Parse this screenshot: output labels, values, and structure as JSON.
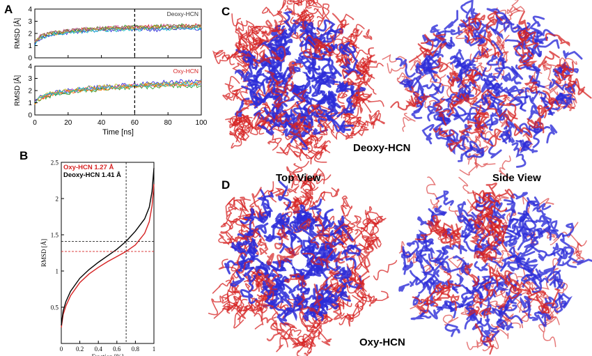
{
  "panels": {
    "a": "A",
    "b": "B",
    "c": "C",
    "d": "D"
  },
  "labels": {
    "deoxy": "Deoxy-HCN",
    "top_view": "Top View",
    "side_view": "Side View",
    "oxy": "Oxy-HCN"
  },
  "colors": {
    "deoxy": "#2d2dd8",
    "oxy": "#d62222",
    "black": "#000000"
  },
  "chart_data": [
    {
      "type": "line",
      "panel": "A-top",
      "annotation": "Deoxy-HCN",
      "xlim": [
        0,
        100
      ],
      "ylim": [
        0,
        4
      ],
      "yticks": [
        "0",
        "1",
        "2",
        "3",
        "4"
      ],
      "ylabel": "RMSD [Å]",
      "vline_x": 60,
      "x": [
        0,
        2,
        5,
        10,
        20,
        30,
        40,
        50,
        60,
        70,
        80,
        90,
        100
      ],
      "series": [
        {
          "color": "#d62222",
          "values": [
            1.2,
            1.6,
            1.8,
            2.0,
            2.2,
            2.3,
            2.4,
            2.45,
            2.5,
            2.55,
            2.6,
            2.6,
            2.65
          ]
        },
        {
          "color": "#2d2dd8",
          "values": [
            1.2,
            1.5,
            1.7,
            1.9,
            2.1,
            2.2,
            2.3,
            2.3,
            2.35,
            2.3,
            2.35,
            2.4,
            2.4
          ]
        },
        {
          "color": "#2ca02c",
          "values": [
            1.3,
            1.6,
            1.8,
            2.0,
            2.2,
            2.35,
            2.4,
            2.5,
            2.55,
            2.6,
            2.6,
            2.65,
            2.6
          ]
        },
        {
          "color": "#e377c2",
          "values": [
            1.3,
            1.7,
            1.9,
            2.1,
            2.25,
            2.35,
            2.45,
            2.5,
            2.5,
            2.55,
            2.6,
            2.55,
            2.6
          ]
        },
        {
          "color": "#bcbd22",
          "values": [
            1.2,
            1.6,
            1.8,
            2.0,
            2.15,
            2.3,
            2.35,
            2.4,
            2.45,
            2.5,
            2.5,
            2.55,
            2.55
          ]
        },
        {
          "color": "#17becf",
          "values": [
            1.1,
            1.5,
            1.7,
            1.9,
            2.05,
            2.2,
            2.25,
            2.3,
            2.35,
            2.4,
            2.4,
            2.45,
            2.45
          ]
        },
        {
          "color": "#8c564b",
          "values": [
            1.3,
            1.6,
            1.85,
            2.05,
            2.2,
            2.3,
            2.4,
            2.45,
            2.5,
            2.5,
            2.55,
            2.6,
            2.6
          ]
        }
      ]
    },
    {
      "type": "line",
      "panel": "A-bottom",
      "annotation": "Oxy-HCN",
      "xlim": [
        0,
        100
      ],
      "ylim": [
        0,
        4
      ],
      "xticks": [
        "0",
        "20",
        "40",
        "60",
        "80",
        "100"
      ],
      "yticks": [
        "0",
        "1",
        "2",
        "3",
        "4"
      ],
      "xlabel": "Time [ns]",
      "ylabel": "RMSD [Å]",
      "vline_x": 60,
      "x": [
        0,
        2,
        5,
        10,
        20,
        30,
        40,
        50,
        60,
        70,
        80,
        90,
        100
      ],
      "series": [
        {
          "color": "#d62222",
          "values": [
            1.0,
            1.3,
            1.5,
            1.7,
            1.9,
            2.1,
            2.2,
            2.3,
            2.4,
            2.45,
            2.5,
            2.55,
            2.6
          ]
        },
        {
          "color": "#2d2dd8",
          "values": [
            1.1,
            1.4,
            1.6,
            1.8,
            2.0,
            2.2,
            2.3,
            2.4,
            2.5,
            2.6,
            2.7,
            2.75,
            2.8
          ]
        },
        {
          "color": "#2ca02c",
          "values": [
            0.9,
            1.2,
            1.4,
            1.6,
            1.8,
            2.0,
            2.1,
            2.2,
            2.3,
            2.3,
            2.35,
            2.4,
            2.4
          ]
        },
        {
          "color": "#e377c2",
          "values": [
            1.0,
            1.3,
            1.5,
            1.75,
            1.95,
            2.1,
            2.25,
            2.35,
            2.4,
            2.5,
            2.5,
            2.55,
            2.6
          ]
        },
        {
          "color": "#bcbd22",
          "values": [
            1.0,
            1.35,
            1.55,
            1.8,
            2.0,
            2.15,
            2.3,
            2.4,
            2.45,
            2.5,
            2.55,
            2.6,
            2.65
          ]
        },
        {
          "color": "#ff7f0e",
          "values": [
            0.9,
            1.25,
            1.45,
            1.7,
            1.9,
            2.05,
            2.15,
            2.25,
            2.35,
            2.4,
            2.45,
            2.5,
            2.5
          ]
        },
        {
          "color": "#17becf",
          "values": [
            1.05,
            1.3,
            1.5,
            1.75,
            1.95,
            2.1,
            2.2,
            2.3,
            2.4,
            2.45,
            2.5,
            2.55,
            2.55
          ]
        }
      ]
    },
    {
      "type": "line",
      "panel": "B",
      "xlim": [
        0,
        1
      ],
      "ylim": [
        0,
        2.5
      ],
      "xticks": [
        "0",
        "0.2",
        "0.4",
        "0.6",
        "0.8",
        "1"
      ],
      "yticks": [
        "0.5",
        "1",
        "1.5",
        "2",
        "2.5"
      ],
      "xlabel": "Fraction [%]",
      "ylabel": "RMSD [Å]",
      "legend": [
        {
          "text": "Oxy-HCN 1.27 Å",
          "color": "#d62222"
        },
        {
          "text": "Deoxy-HCN 1.41 Å",
          "color": "#000000"
        }
      ],
      "vline_x": 0.7,
      "hlines": [
        {
          "y": 1.41,
          "color": "#000000"
        },
        {
          "y": 1.27,
          "color": "#d62222"
        }
      ],
      "x": [
        0,
        0.02,
        0.05,
        0.1,
        0.2,
        0.3,
        0.4,
        0.5,
        0.6,
        0.7,
        0.8,
        0.9,
        0.95,
        0.98,
        1.0
      ],
      "series": [
        {
          "color": "#d62222",
          "values": [
            0.22,
            0.4,
            0.52,
            0.66,
            0.84,
            0.96,
            1.05,
            1.13,
            1.2,
            1.27,
            1.36,
            1.52,
            1.68,
            1.9,
            2.2
          ]
        },
        {
          "color": "#000000",
          "values": [
            0.25,
            0.45,
            0.58,
            0.72,
            0.9,
            1.02,
            1.12,
            1.21,
            1.3,
            1.41,
            1.55,
            1.72,
            1.88,
            2.1,
            2.42
          ]
        }
      ]
    }
  ]
}
